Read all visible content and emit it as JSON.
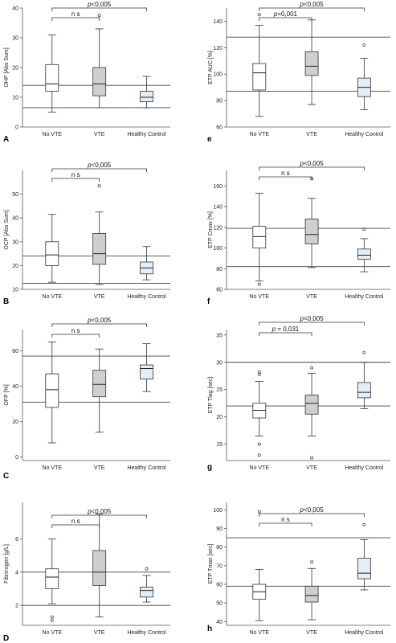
{
  "chart_data": [
    {
      "type": "boxplot",
      "panel_label": "A",
      "ylabel": "OHP [Abs Sum]",
      "ylim": [
        0,
        40
      ],
      "yticks": [
        0,
        10,
        20,
        30,
        40
      ],
      "categories": [
        "No VTE",
        "VTE",
        "Healthy Control"
      ],
      "box_colors": [
        "#ffffff",
        "#cfcfcf",
        "#e3eef9"
      ],
      "boxes": [
        {
          "min": 5,
          "q1": 12,
          "median": 14.5,
          "q3": 21,
          "max": 31,
          "outliers": []
        },
        {
          "min": 6.5,
          "q1": 10.5,
          "median": 14.5,
          "q3": 20,
          "max": 33,
          "outliers": [
            37.5
          ]
        },
        {
          "min": 6.5,
          "q1": 8.5,
          "median": 10,
          "q3": 12,
          "max": 17,
          "outliers": []
        }
      ],
      "ref_lines": [
        14,
        6.5
      ],
      "brackets": [
        {
          "from": 0,
          "to": 1,
          "level": 1,
          "parts": [
            {
              "text": "n s",
              "italic": false
            }
          ]
        },
        {
          "from": 0,
          "to": 2,
          "level": 2,
          "parts": [
            {
              "text": "p",
              "italic": true
            },
            {
              "text": "<0,005",
              "italic": false
            }
          ]
        }
      ]
    },
    {
      "type": "boxplot",
      "panel_label": "e",
      "ylabel": "ETP AUC [%]",
      "ylim": [
        60,
        150
      ],
      "yticks": [
        60,
        80,
        100,
        120,
        140
      ],
      "categories": [
        "No VTE",
        "VTE",
        "Healthy Control"
      ],
      "box_colors": [
        "#ffffff",
        "#cfcfcf",
        "#e3eef9"
      ],
      "boxes": [
        {
          "min": 68,
          "q1": 88,
          "median": 101,
          "q3": 108,
          "max": 137,
          "outliers": [
            145
          ]
        },
        {
          "min": 77,
          "q1": 99,
          "median": 106,
          "q3": 117,
          "max": 141,
          "outliers": []
        },
        {
          "min": 73,
          "q1": 83,
          "median": 90,
          "q3": 97,
          "max": 112,
          "outliers": [
            122
          ]
        }
      ],
      "ref_lines": [
        128,
        87
      ],
      "brackets": [
        {
          "from": 0,
          "to": 1,
          "level": 1,
          "parts": [
            {
              "text": "p",
              "italic": true
            },
            {
              "text": "=0,001",
              "italic": false
            }
          ]
        },
        {
          "from": 0,
          "to": 2,
          "level": 2,
          "parts": [
            {
              "text": "p",
              "italic": true
            },
            {
              "text": "<0,005",
              "italic": false
            }
          ]
        }
      ]
    },
    {
      "type": "boxplot",
      "panel_label": "B",
      "ylabel": "OCP [Abs Sum]",
      "ylim": [
        10,
        60
      ],
      "yticks": [
        10,
        20,
        30,
        40,
        50
      ],
      "categories": [
        "No VTE",
        "VTE",
        "Healthy Control"
      ],
      "box_colors": [
        "#ffffff",
        "#cfcfcf",
        "#e3eef9"
      ],
      "boxes": [
        {
          "min": 13,
          "q1": 20,
          "median": 24.5,
          "q3": 30,
          "max": 41.5,
          "outliers": []
        },
        {
          "min": 12,
          "q1": 20.5,
          "median": 25,
          "q3": 33.5,
          "max": 42.5,
          "outliers": [
            53.5
          ]
        },
        {
          "min": 14,
          "q1": 16.5,
          "median": 19,
          "q3": 21.5,
          "max": 28,
          "outliers": []
        }
      ],
      "ref_lines": [
        24,
        12.5
      ],
      "brackets": [
        {
          "from": 0,
          "to": 1,
          "level": 1,
          "parts": [
            {
              "text": "n s",
              "italic": false
            }
          ]
        },
        {
          "from": 0,
          "to": 2,
          "level": 2,
          "parts": [
            {
              "text": "p",
              "italic": true
            },
            {
              "text": "<0,005",
              "italic": false
            }
          ]
        }
      ]
    },
    {
      "type": "boxplot",
      "panel_label": "f",
      "ylabel": "ETP Cmax [%]",
      "ylim": [
        60,
        175
      ],
      "yticks": [
        60,
        80,
        100,
        120,
        140,
        160
      ],
      "categories": [
        "No VTE",
        "VTE",
        "Healthy Control"
      ],
      "box_colors": [
        "#ffffff",
        "#cfcfcf",
        "#e3eef9"
      ],
      "boxes": [
        {
          "min": 68,
          "q1": 100,
          "median": 111,
          "q3": 121,
          "max": 153,
          "outliers": [
            65
          ]
        },
        {
          "min": 81,
          "q1": 104,
          "median": 113,
          "q3": 128,
          "max": 148,
          "outliers": [
            167
          ]
        },
        {
          "min": 77,
          "q1": 89,
          "median": 93,
          "q3": 99,
          "max": 109,
          "outliers": [
            118
          ]
        }
      ],
      "ref_lines": [
        119,
        82
      ],
      "brackets": [
        {
          "from": 0,
          "to": 1,
          "level": 1,
          "parts": [
            {
              "text": "n s",
              "italic": false
            }
          ]
        },
        {
          "from": 0,
          "to": 2,
          "level": 2,
          "parts": [
            {
              "text": "p",
              "italic": true
            },
            {
              "text": "<0,005",
              "italic": false
            }
          ]
        }
      ]
    },
    {
      "type": "boxplot",
      "panel_label": "C",
      "ylabel": "OFP [%]",
      "ylim": [
        -2,
        72
      ],
      "yticks": [
        0,
        20,
        40,
        60
      ],
      "categories": [
        "No VTE",
        "VTE",
        "Healthy Control"
      ],
      "box_colors": [
        "#ffffff",
        "#cfcfcf",
        "#e3eef9"
      ],
      "boxes": [
        {
          "min": 8,
          "q1": 28,
          "median": 38,
          "q3": 47,
          "max": 65,
          "outliers": []
        },
        {
          "min": 14,
          "q1": 34,
          "median": 41,
          "q3": 49,
          "max": 61,
          "outliers": []
        },
        {
          "min": 37,
          "q1": 44,
          "median": 50,
          "q3": 52,
          "max": 64,
          "outliers": []
        }
      ],
      "ref_lines": [
        57,
        31
      ],
      "brackets": [
        {
          "from": 0,
          "to": 1,
          "level": 1,
          "parts": [
            {
              "text": "n s",
              "italic": false
            }
          ]
        },
        {
          "from": 0,
          "to": 2,
          "level": 2,
          "parts": [
            {
              "text": "p",
              "italic": true
            },
            {
              "text": "<0,005",
              "italic": false
            }
          ]
        }
      ]
    },
    {
      "type": "boxplot",
      "panel_label": "g",
      "ylabel": "ETP Tlag [sec]",
      "ylim": [
        12,
        36
      ],
      "yticks": [
        15,
        20,
        25,
        30,
        35
      ],
      "categories": [
        "No VTE",
        "VTE",
        "Healthy Control"
      ],
      "box_colors": [
        "#ffffff",
        "#cfcfcf",
        "#e3eef9"
      ],
      "boxes": [
        {
          "min": 16.5,
          "q1": 19.8,
          "median": 21.2,
          "q3": 22.5,
          "max": 26.5,
          "outliers": [
            28.2,
            27.8,
            15,
            13
          ]
        },
        {
          "min": 16.5,
          "q1": 20.5,
          "median": 22.5,
          "q3": 24,
          "max": 28,
          "outliers": [
            29,
            12.5
          ]
        },
        {
          "min": 21.5,
          "q1": 23.5,
          "median": 24.5,
          "q3": 26.3,
          "max": 30,
          "outliers": [
            31.8
          ]
        }
      ],
      "ref_lines": [
        30,
        22
      ],
      "brackets": [
        {
          "from": 0,
          "to": 1,
          "level": 1,
          "parts": [
            {
              "text": "p",
              "italic": true
            },
            {
              "text": " = 0,031",
              "italic": false
            }
          ]
        },
        {
          "from": 0,
          "to": 2,
          "level": 2,
          "parts": [
            {
              "text": "p",
              "italic": true
            },
            {
              "text": "<0,005",
              "italic": false
            }
          ]
        }
      ]
    },
    {
      "type": "boxplot",
      "panel_label": "D",
      "ylabel": "Fibrinogen [g/L]",
      "ylim": [
        0.8,
        8.2
      ],
      "yticks": [
        2,
        4,
        6
      ],
      "categories": [
        "No VTE",
        "VTE",
        "Healthy Control"
      ],
      "box_colors": [
        "#ffffff",
        "#cfcfcf",
        "#e3eef9"
      ],
      "boxes": [
        {
          "min": 2.1,
          "q1": 3.0,
          "median": 3.7,
          "q3": 4.2,
          "max": 6.0,
          "outliers": [
            1.3,
            1.1
          ]
        },
        {
          "min": 1.3,
          "q1": 3.2,
          "median": 4.0,
          "q3": 5.3,
          "max": 7.5,
          "outliers": []
        },
        {
          "min": 2.2,
          "q1": 2.5,
          "median": 2.9,
          "q3": 3.1,
          "max": 3.8,
          "outliers": [
            4.2
          ]
        }
      ],
      "ref_lines": [
        4.0,
        2.0
      ],
      "brackets": [
        {
          "from": 0,
          "to": 1,
          "level": 1,
          "parts": [
            {
              "text": "n s",
              "italic": false
            }
          ]
        },
        {
          "from": 0,
          "to": 2,
          "level": 2,
          "parts": [
            {
              "text": "p",
              "italic": true
            },
            {
              "text": "<0,005",
              "italic": false
            }
          ]
        }
      ]
    },
    {
      "type": "boxplot",
      "panel_label": "h",
      "ylabel": "ETP Tmax [sec]",
      "ylim": [
        38,
        104
      ],
      "yticks": [
        40,
        50,
        60,
        70,
        80,
        90,
        100
      ],
      "categories": [
        "No VTE",
        "VTE",
        "Healthy Control"
      ],
      "box_colors": [
        "#ffffff",
        "#cfcfcf",
        "#e3eef9"
      ],
      "boxes": [
        {
          "min": 40.5,
          "q1": 52,
          "median": 56,
          "q3": 60,
          "max": 68,
          "outliers": [
            99
          ]
        },
        {
          "min": 41,
          "q1": 50.5,
          "median": 54,
          "q3": 59,
          "max": 68.5,
          "outliers": [
            72
          ]
        },
        {
          "min": 57,
          "q1": 63,
          "median": 66,
          "q3": 74,
          "max": 84,
          "outliers": [
            92
          ]
        }
      ],
      "ref_lines": [
        85,
        59
      ],
      "brackets": [
        {
          "from": 0,
          "to": 1,
          "level": 1,
          "parts": [
            {
              "text": "n s",
              "italic": false
            }
          ]
        },
        {
          "from": 0,
          "to": 2,
          "level": 2,
          "parts": [
            {
              "text": "p",
              "italic": true
            },
            {
              "text": "<0,005",
              "italic": false
            }
          ]
        }
      ]
    }
  ]
}
